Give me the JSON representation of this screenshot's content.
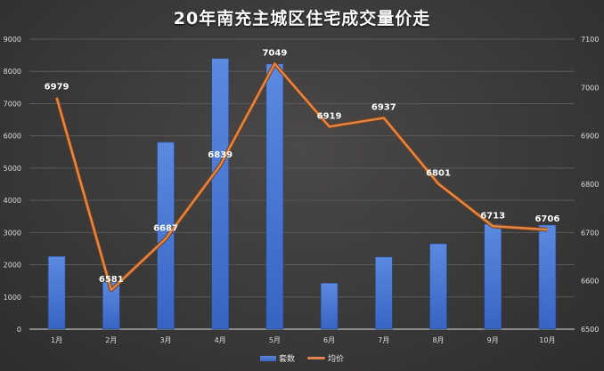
{
  "chart_data": {
    "type": "bar+line",
    "title": "20年南充主城区住宅成交量价走",
    "categories": [
      "1月",
      "2月",
      "3月",
      "4月",
      "5月",
      "6月",
      "7月",
      "8月",
      "9月",
      "10月"
    ],
    "series": [
      {
        "name": "套数",
        "type": "bar",
        "axis": "left",
        "color": "#4472c4",
        "values": [
          2260,
          1460,
          5800,
          8400,
          8230,
          1430,
          2240,
          2650,
          3260,
          3230
        ]
      },
      {
        "name": "均价",
        "type": "line",
        "axis": "right",
        "color": "#e0864a",
        "values": [
          6979,
          6581,
          6687,
          6839,
          7049,
          6919,
          6937,
          6801,
          6713,
          6706
        ],
        "labels": [
          "6979",
          "6581",
          "6687",
          "6839",
          "7049",
          "6919",
          "6937",
          "6801",
          "6713",
          "6706"
        ]
      }
    ],
    "left_axis": {
      "min": 0,
      "max": 9000,
      "step": 1000,
      "ticks": [
        "0",
        "1000",
        "2000",
        "3000",
        "4000",
        "5000",
        "6000",
        "7000",
        "8000",
        "9000"
      ]
    },
    "right_axis": {
      "min": 6500,
      "max": 7100,
      "step": 100,
      "ticks": [
        "6500",
        "6600",
        "6700",
        "6800",
        "6900",
        "7000",
        "7100"
      ]
    },
    "grid": true,
    "legend_position": "bottom"
  },
  "legend": {
    "bar_label": "套数",
    "line_label": "均价"
  }
}
